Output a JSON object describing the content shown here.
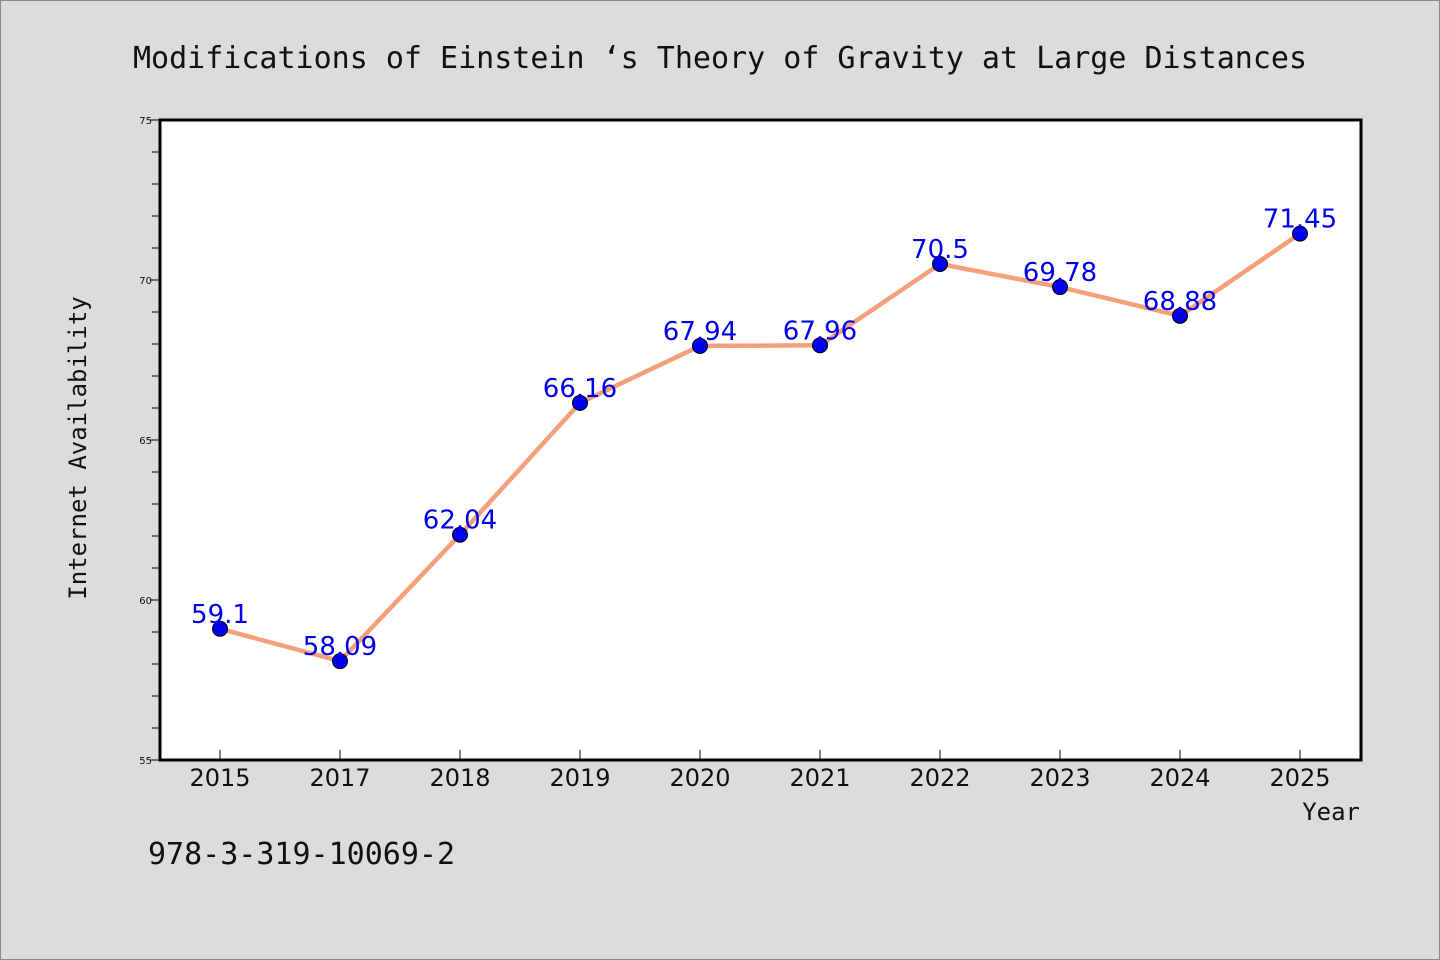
{
  "chart_data": {
    "type": "line",
    "title": "Modifications of Einstein ‘s Theory of Gravity at Large Distances",
    "xlabel": "Year",
    "ylabel": "Internet Availability",
    "categories": [
      "2015",
      "2017",
      "2018",
      "2019",
      "2020",
      "2021",
      "2022",
      "2023",
      "2024",
      "2025"
    ],
    "series": [
      {
        "values": [
          59.1,
          58.09,
          62.04,
          66.16,
          67.94,
          67.96,
          70.5,
          69.78,
          68.88,
          71.45
        ],
        "labels": [
          "59.1",
          "58.09",
          "62.04",
          "66.16",
          "67.94",
          "67.96",
          "70.5",
          "69.78",
          "68.88",
          "71.45"
        ]
      }
    ],
    "ylim": [
      55,
      75
    ],
    "yticks": [
      "55",
      "60",
      "65",
      "70",
      "75"
    ],
    "grid": false,
    "line_color": "#f4a07a",
    "marker_color": "#0000ee",
    "label_color": "#0000ee",
    "plot_background": "#ffffff",
    "figure_background": "#dcdcdc"
  },
  "footnote": "978-3-319-10069-2"
}
